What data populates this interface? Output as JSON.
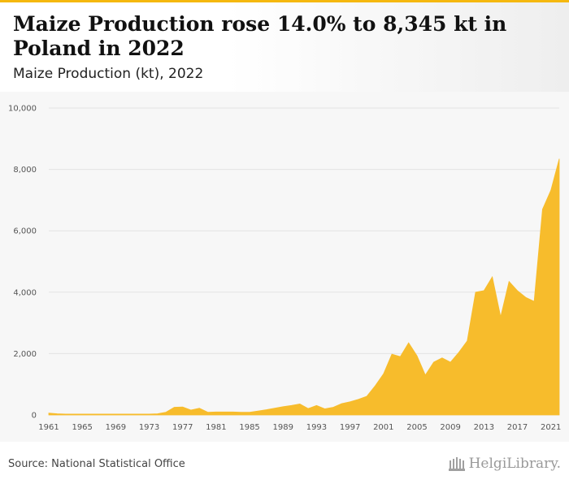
{
  "header": {
    "title": "Maize Production rose 14.0% to 8,345 kt in Poland in 2022",
    "subtitle": "Maize Production (kt), 2022"
  },
  "footer": {
    "source": "Source: National Statistical Office",
    "brand": "HelgiLibrary."
  },
  "colors": {
    "accent": "#f5b80f",
    "area": "#f7bc2c"
  },
  "chart_data": {
    "type": "area",
    "title": "Maize Production rose 14.0% to 8,345 kt in Poland in 2022",
    "subtitle": "Maize Production (kt), 2022",
    "xlabel": "",
    "ylabel": "",
    "ylim": [
      0,
      10000
    ],
    "xlim": [
      1961,
      2022
    ],
    "y_ticks": [
      "0",
      "2,000",
      "4,000",
      "6,000",
      "8,000",
      "10,000"
    ],
    "x_ticks": [
      "1961",
      "1965",
      "1969",
      "1973",
      "1977",
      "1981",
      "1985",
      "1989",
      "1993",
      "1997",
      "2001",
      "2005",
      "2009",
      "2013",
      "2017",
      "2021"
    ],
    "grid": true,
    "legend": "none",
    "x": [
      1961,
      1962,
      1963,
      1964,
      1965,
      1966,
      1967,
      1968,
      1969,
      1970,
      1971,
      1972,
      1973,
      1974,
      1975,
      1976,
      1977,
      1978,
      1979,
      1980,
      1981,
      1982,
      1983,
      1984,
      1985,
      1986,
      1987,
      1988,
      1989,
      1990,
      1991,
      1992,
      1993,
      1994,
      1995,
      1996,
      1997,
      1998,
      1999,
      2000,
      2001,
      2002,
      2003,
      2004,
      2005,
      2006,
      2007,
      2008,
      2009,
      2010,
      2011,
      2012,
      2013,
      2014,
      2015,
      2016,
      2017,
      2018,
      2019,
      2020,
      2021,
      2022
    ],
    "values": [
      60,
      40,
      30,
      30,
      30,
      30,
      30,
      30,
      30,
      30,
      30,
      30,
      30,
      40,
      90,
      250,
      260,
      160,
      220,
      90,
      100,
      100,
      100,
      90,
      90,
      130,
      170,
      220,
      270,
      310,
      360,
      210,
      310,
      200,
      250,
      370,
      430,
      510,
      610,
      950,
      1340,
      1980,
      1900,
      2350,
      1930,
      1300,
      1720,
      1860,
      1720,
      2040,
      2410,
      4000,
      4050,
      4500,
      3200,
      4350,
      4050,
      3830,
      3700,
      6700,
      7320,
      8345
    ]
  }
}
